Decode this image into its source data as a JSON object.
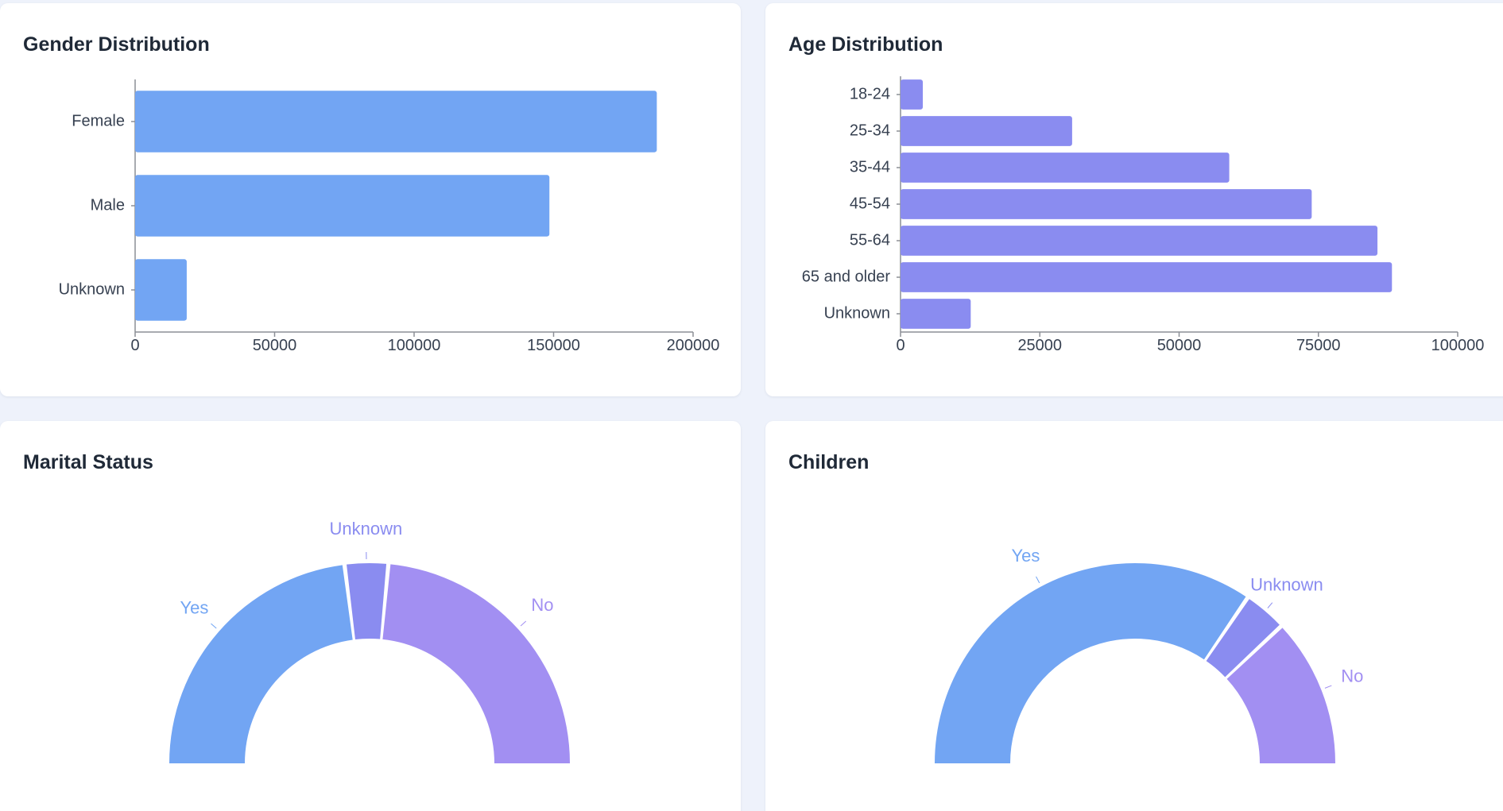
{
  "colors": {
    "blue": "#72a5f3",
    "indigo": "#8a8cf0",
    "purple": "#a28ff2",
    "axis": "#8c8f96",
    "tick_text": "#374151",
    "title": "#1f2937"
  },
  "cards": {
    "gender": {
      "title": "Gender Distribution"
    },
    "age": {
      "title": "Age Distribution"
    },
    "marital": {
      "title": "Marital Status"
    },
    "children": {
      "title": "Children"
    }
  },
  "chart_data": [
    {
      "id": "gender",
      "type": "bar",
      "orientation": "horizontal",
      "title": "Gender Distribution",
      "categories": [
        "Female",
        "Male",
        "Unknown"
      ],
      "values": [
        187000,
        148500,
        18500
      ],
      "xlim": [
        0,
        200000
      ],
      "xticks": [
        "0",
        "50000",
        "100000",
        "150000",
        "200000"
      ],
      "color": "#72a5f3",
      "grid": false,
      "legend": "none"
    },
    {
      "id": "age",
      "type": "bar",
      "orientation": "horizontal",
      "title": "Age Distribution",
      "categories": [
        "18-24",
        "25-34",
        "35-44",
        "45-54",
        "55-64",
        "65 and older",
        "Unknown"
      ],
      "values": [
        4000,
        30800,
        59000,
        73800,
        85600,
        88200,
        12600
      ],
      "xlim": [
        0,
        100000
      ],
      "xticks": [
        "0",
        "25000",
        "50000",
        "75000",
        "100000"
      ],
      "color": "#8a8cf0",
      "grid": false,
      "legend": "none"
    },
    {
      "id": "marital",
      "type": "pie",
      "style": "half-donut",
      "title": "Marital Status",
      "labels": [
        "Yes",
        "Unknown",
        "No"
      ],
      "values": [
        46,
        7,
        47
      ],
      "colors": [
        "#72a5f3",
        "#8a8cf0",
        "#a28ff2"
      ],
      "legend": "none"
    },
    {
      "id": "children",
      "type": "pie",
      "style": "half-donut",
      "title": "Children",
      "labels": [
        "Yes",
        "Unknown",
        "No"
      ],
      "values": [
        69,
        7,
        24
      ],
      "colors": [
        "#72a5f3",
        "#8a8cf0",
        "#a28ff2"
      ],
      "legend": "none"
    }
  ]
}
